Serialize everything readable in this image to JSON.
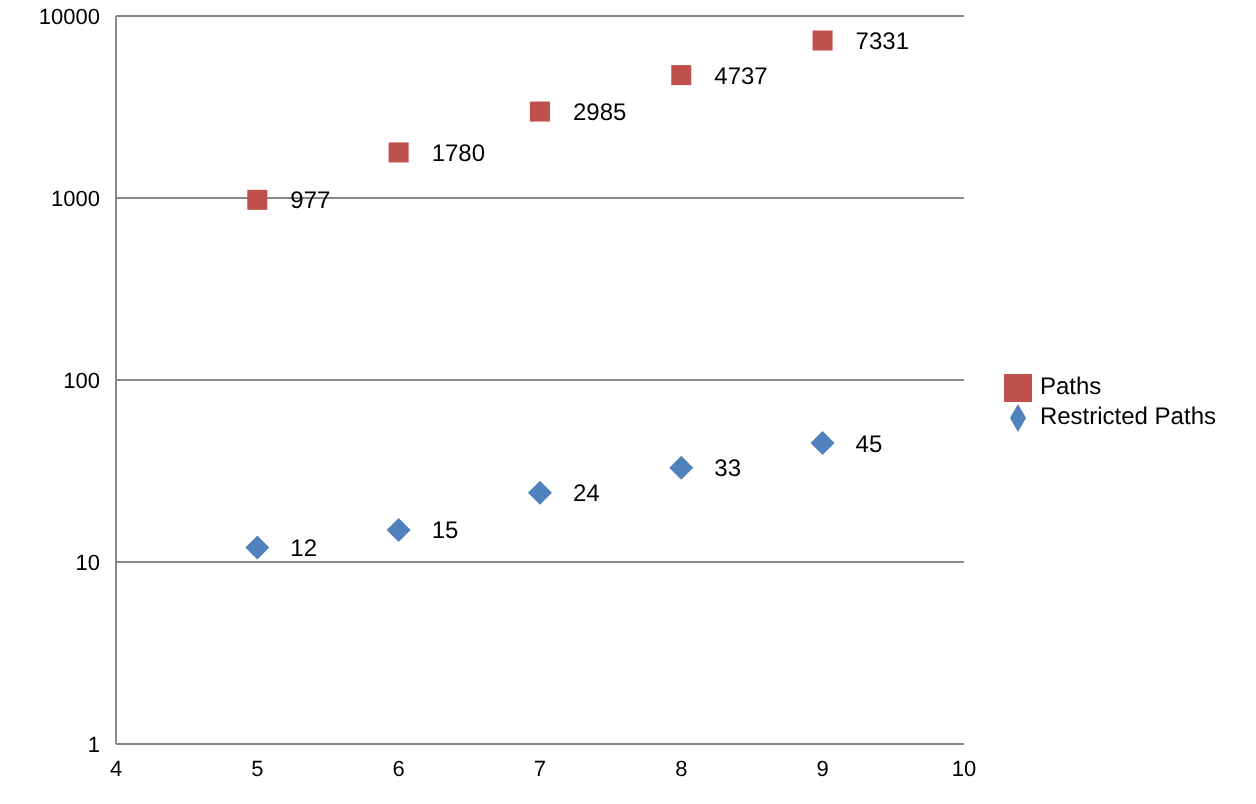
{
  "chart_data": {
    "type": "scatter",
    "x": [
      5,
      6,
      7,
      8,
      9
    ],
    "series": [
      {
        "name": "Restricted Paths",
        "color": "#4f81bd",
        "marker": "diamond",
        "values": [
          12,
          15,
          24,
          33,
          45
        ]
      },
      {
        "name": "Paths",
        "color": "#c0504d",
        "marker": "square",
        "values": [
          977,
          1780,
          2985,
          4737,
          7331
        ]
      }
    ],
    "log": "y",
    "xlim": [
      4,
      10
    ],
    "xticks": [
      4,
      5,
      6,
      7,
      8,
      9,
      10
    ],
    "ylim": [
      1,
      10000
    ],
    "yticks": [
      1,
      10,
      100,
      1000,
      10000
    ],
    "grid": "y",
    "legend": "right",
    "data_labels": true
  }
}
